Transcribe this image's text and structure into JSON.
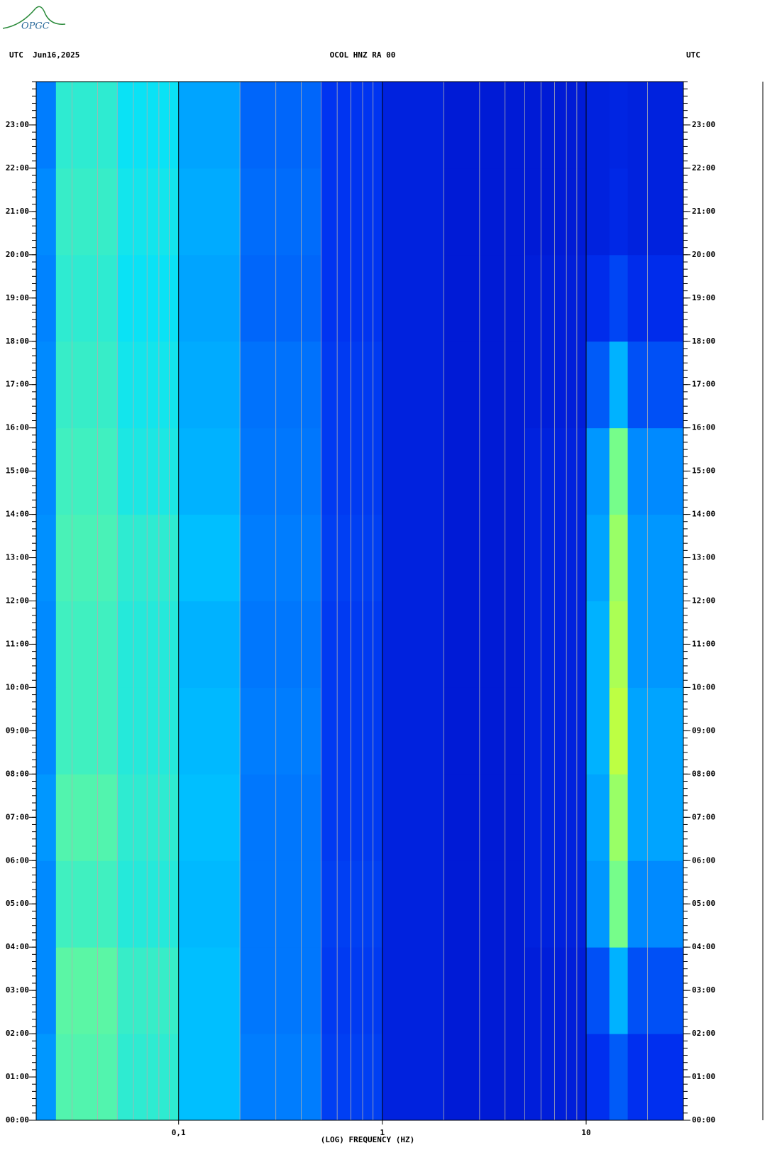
{
  "logo": "OPGC",
  "chart_data": {
    "type": "spectrogram",
    "title": "OCOL HNZ RA 00",
    "left_header": "UTC  Jun16,2025",
    "right_header": "UTC",
    "xlabel": "(LOG) FREQUENCY (HZ)",
    "xscale": "log",
    "xlim": [
      0.02,
      30
    ],
    "xticks": [
      {
        "value": 0.1,
        "label": "0,1"
      },
      1,
      10
    ],
    "ylim": [
      0,
      24
    ],
    "yticks": [
      {
        "value": 0,
        "label": "00:00"
      },
      {
        "value": 1,
        "label": "01:00"
      },
      {
        "value": 2,
        "label": "02:00"
      },
      {
        "value": 3,
        "label": "03:00"
      },
      {
        "value": 4,
        "label": "04:00"
      },
      {
        "value": 5,
        "label": "05:00"
      },
      {
        "value": 6,
        "label": "06:00"
      },
      {
        "value": 7,
        "label": "07:00"
      },
      {
        "value": 8,
        "label": "08:00"
      },
      {
        "value": 9,
        "label": "09:00"
      },
      {
        "value": 10,
        "label": "10:00"
      },
      {
        "value": 11,
        "label": "11:00"
      },
      {
        "value": 12,
        "label": "12:00"
      },
      {
        "value": 13,
        "label": "13:00"
      },
      {
        "value": 14,
        "label": "14:00"
      },
      {
        "value": 15,
        "label": "15:00"
      },
      {
        "value": 16,
        "label": "16:00"
      },
      {
        "value": 17,
        "label": "17:00"
      },
      {
        "value": 18,
        "label": "18:00"
      },
      {
        "value": 19,
        "label": "19:00"
      },
      {
        "value": 20,
        "label": "20:00"
      },
      {
        "value": 21,
        "label": "21:00"
      },
      {
        "value": 22,
        "label": "22:00"
      },
      {
        "value": 23,
        "label": "23:00"
      }
    ],
    "minor_grid": true,
    "freq_bins": [
      0.02,
      0.025,
      0.05,
      0.1,
      0.2,
      0.5,
      1,
      2,
      5,
      10,
      13,
      16,
      30
    ],
    "time_bins": [
      0,
      2,
      4,
      6,
      8,
      10,
      12,
      14,
      16,
      18,
      20,
      22,
      24
    ],
    "zlim": [
      0,
      1
    ],
    "colormap": [
      "#0000b4",
      "#0030f0",
      "#0080ff",
      "#00e0ff",
      "#80ff80",
      "#ffff00",
      "#ff4000",
      "#a00000"
    ],
    "z": [
      [
        0.32,
        0.52,
        0.48,
        0.38,
        0.28,
        0.17,
        0.1,
        0.08,
        0.09,
        0.14,
        0.22,
        0.14
      ],
      [
        0.3,
        0.53,
        0.49,
        0.38,
        0.27,
        0.16,
        0.1,
        0.08,
        0.09,
        0.2,
        0.36,
        0.2
      ],
      [
        0.3,
        0.5,
        0.47,
        0.37,
        0.27,
        0.17,
        0.1,
        0.08,
        0.1,
        0.32,
        0.56,
        0.3
      ],
      [
        0.32,
        0.52,
        0.48,
        0.38,
        0.27,
        0.16,
        0.1,
        0.08,
        0.1,
        0.34,
        0.6,
        0.34
      ],
      [
        0.3,
        0.5,
        0.47,
        0.37,
        0.28,
        0.16,
        0.1,
        0.08,
        0.1,
        0.36,
        0.64,
        0.34
      ],
      [
        0.3,
        0.5,
        0.47,
        0.36,
        0.27,
        0.16,
        0.1,
        0.08,
        0.1,
        0.36,
        0.62,
        0.32
      ],
      [
        0.31,
        0.51,
        0.48,
        0.38,
        0.28,
        0.17,
        0.1,
        0.08,
        0.1,
        0.34,
        0.6,
        0.32
      ],
      [
        0.3,
        0.5,
        0.46,
        0.36,
        0.27,
        0.16,
        0.1,
        0.08,
        0.1,
        0.32,
        0.56,
        0.3
      ],
      [
        0.3,
        0.49,
        0.45,
        0.35,
        0.26,
        0.16,
        0.1,
        0.08,
        0.09,
        0.22,
        0.36,
        0.2
      ],
      [
        0.29,
        0.48,
        0.44,
        0.34,
        0.24,
        0.15,
        0.1,
        0.08,
        0.09,
        0.13,
        0.18,
        0.13
      ],
      [
        0.3,
        0.49,
        0.45,
        0.35,
        0.25,
        0.15,
        0.1,
        0.08,
        0.08,
        0.1,
        0.12,
        0.1
      ],
      [
        0.28,
        0.48,
        0.44,
        0.34,
        0.24,
        0.15,
        0.1,
        0.08,
        0.08,
        0.1,
        0.11,
        0.1
      ]
    ]
  }
}
